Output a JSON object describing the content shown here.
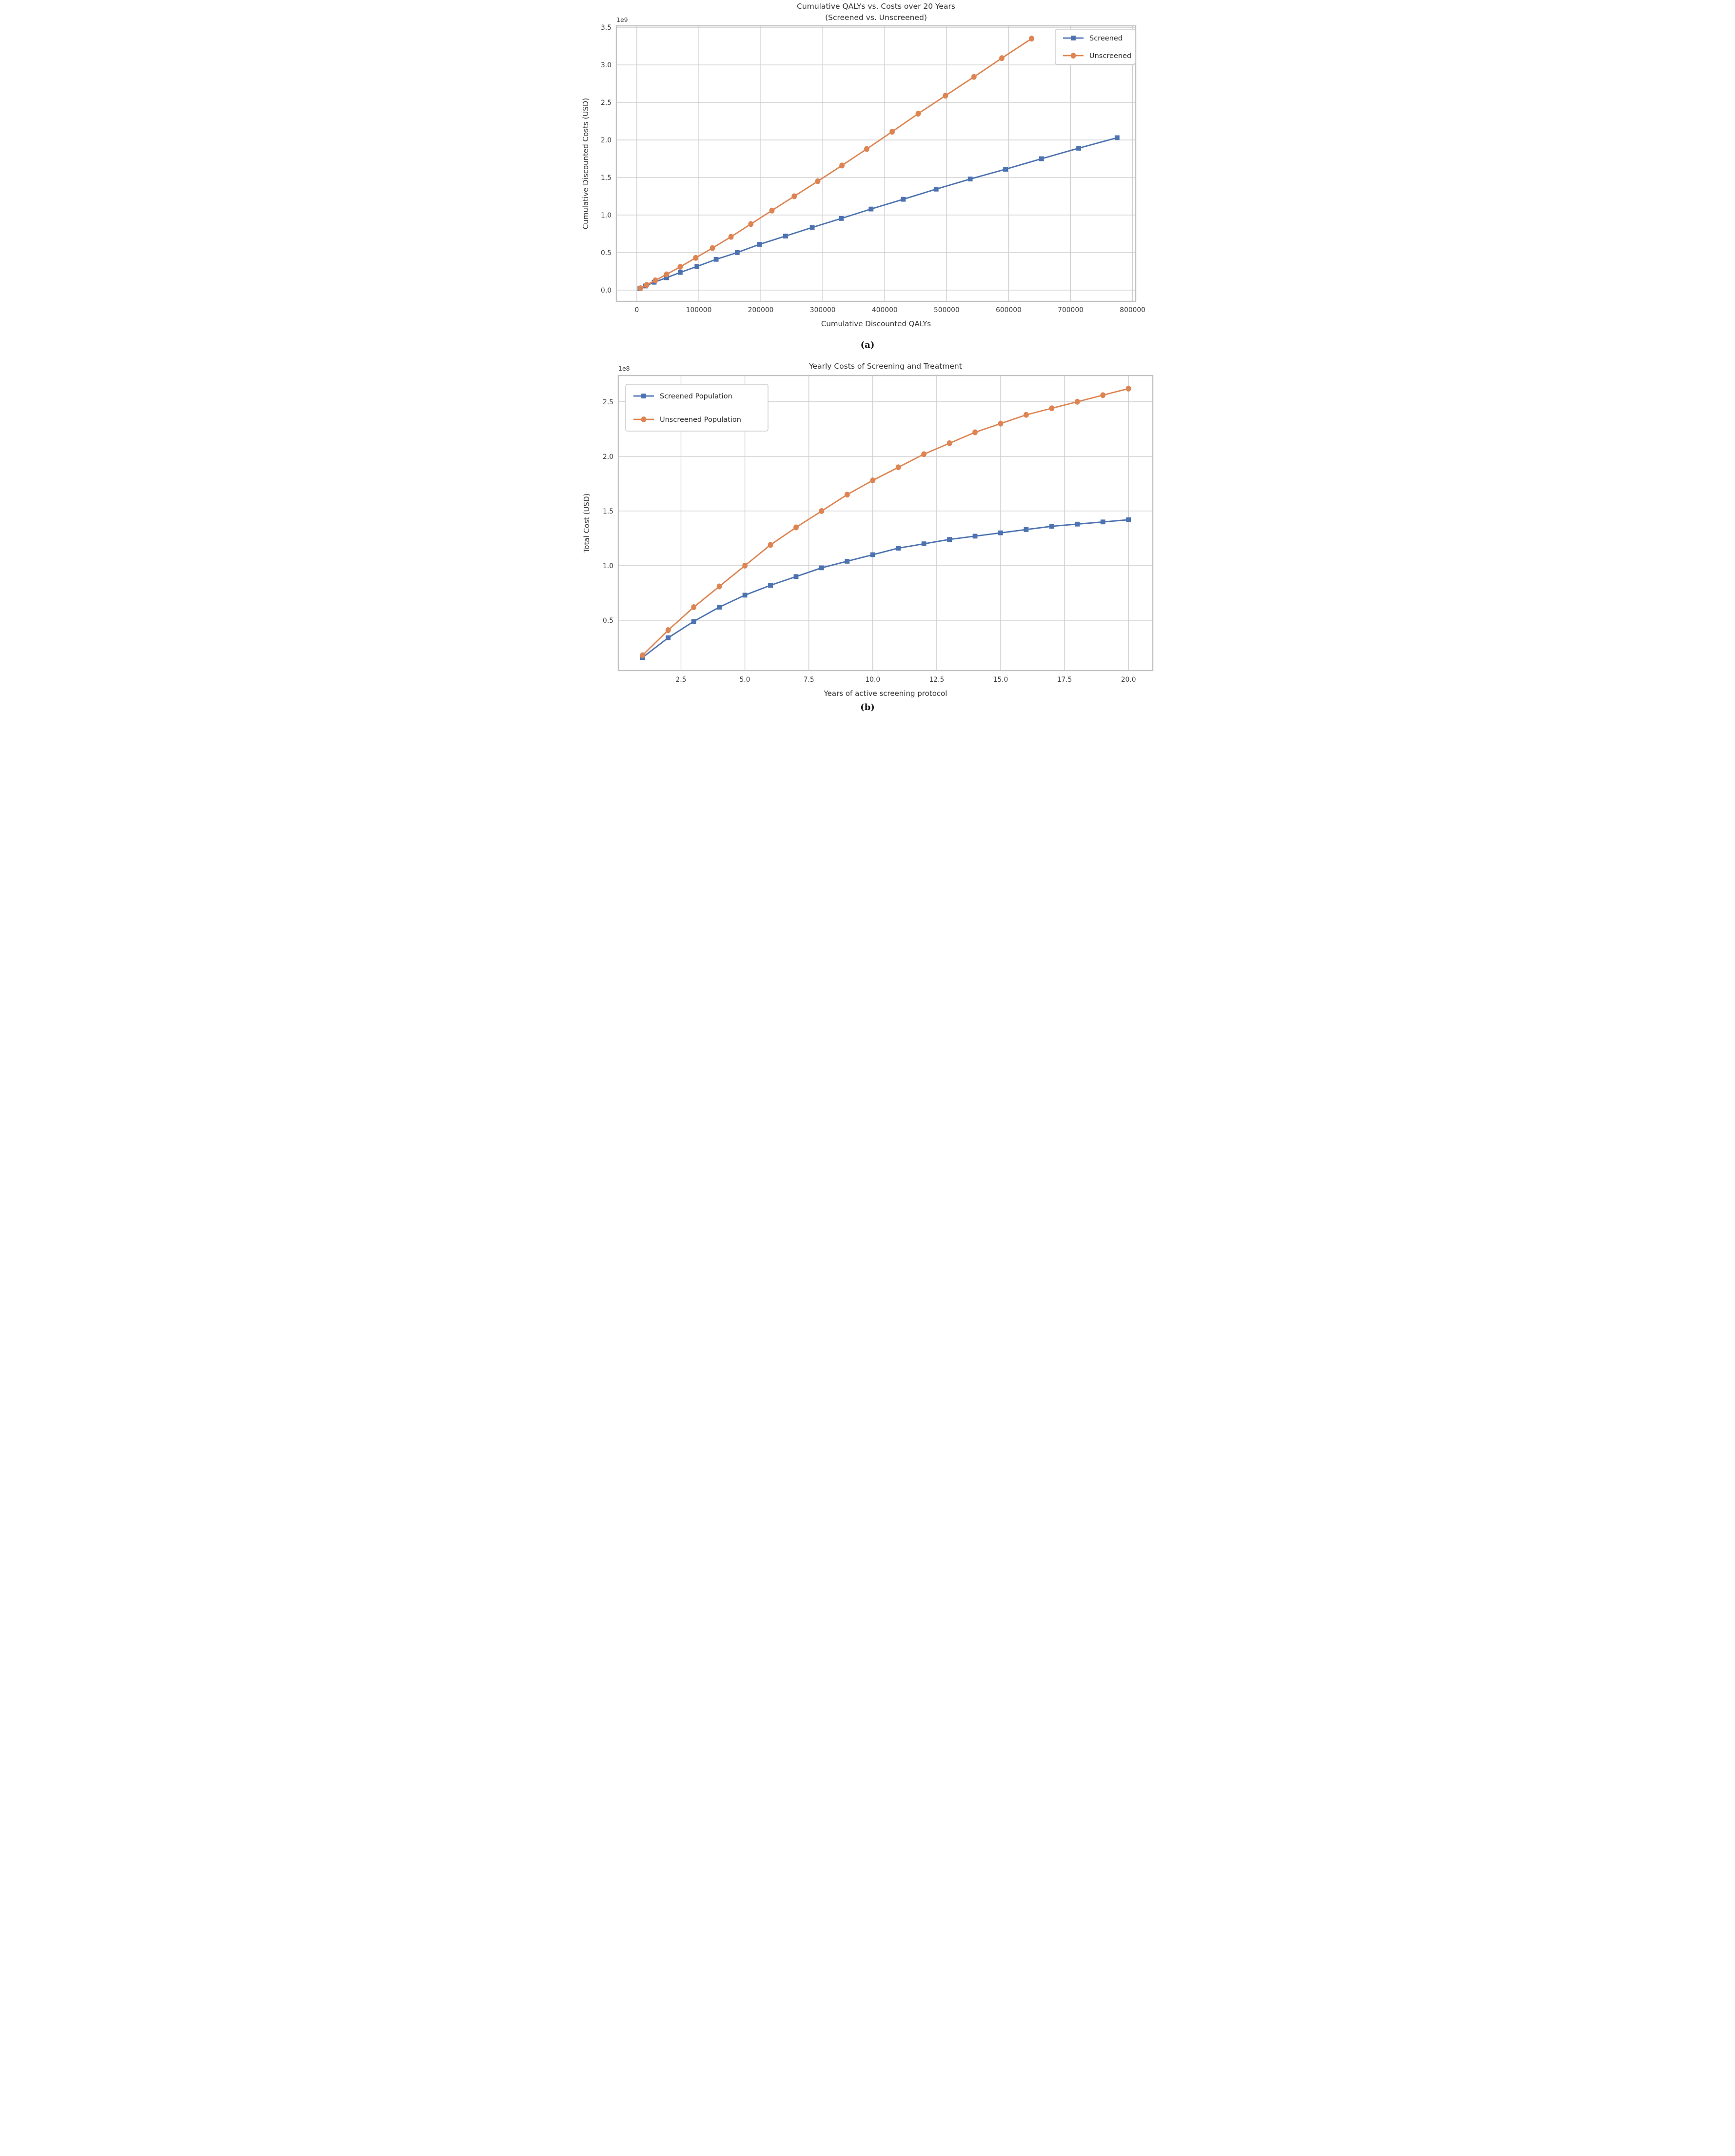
{
  "page": {
    "background": "#ffffff"
  },
  "colors": {
    "screened": "#4C72B0",
    "unscreened": "#DD8452",
    "grid": "#cdcdcd",
    "spine": "#c2c2c2",
    "tick_text": "#3d3d3d",
    "title_text": "#333333",
    "legend_border": "#cccccc"
  },
  "captions": {
    "a": "(a)",
    "b": "(b)"
  },
  "chart_data": [
    {
      "id": "a",
      "type": "line",
      "caption": "(a)",
      "title_lines": [
        "Cumulative QALYs vs. Costs over 20 Years",
        "(Screened vs. Unscreened)"
      ],
      "xlabel": "Cumulative Discounted QALYs",
      "ylabel": "Cumulative Discounted Costs (USD)",
      "offset_text": "1e9",
      "grid": true,
      "xlim": [
        -33000,
        805000
      ],
      "ylim": [
        -0.15,
        3.52
      ],
      "x_ticks": [
        0,
        100000,
        200000,
        300000,
        400000,
        500000,
        600000,
        700000,
        800000
      ],
      "x_tick_labels": [
        "0",
        "100000",
        "200000",
        "300000",
        "400000",
        "500000",
        "600000",
        "700000",
        "800000"
      ],
      "y_ticks": [
        0.0,
        0.5,
        1.0,
        1.5,
        2.0,
        2.5,
        3.0,
        3.5
      ],
      "y_tick_labels": [
        "0.0",
        "0.5",
        "1.0",
        "1.5",
        "2.0",
        "2.5",
        "3.0",
        "3.5"
      ],
      "legend": {
        "position": "upper-right",
        "entries": [
          {
            "label": "Screened",
            "color": "#4C72B0",
            "marker": "square"
          },
          {
            "label": "Unscreened",
            "color": "#DD8452",
            "marker": "circle"
          }
        ]
      },
      "series": [
        {
          "name": "Screened",
          "color": "#4C72B0",
          "marker": "square",
          "x": [
            5000,
            14000,
            28000,
            48000,
            70000,
            97000,
            128000,
            162000,
            198000,
            240000,
            283000,
            330000,
            378000,
            430000,
            483000,
            538000,
            595000,
            653000,
            713000,
            775000
          ],
          "y": [
            0.02,
            0.055,
            0.105,
            0.165,
            0.235,
            0.315,
            0.41,
            0.5,
            0.61,
            0.72,
            0.835,
            0.955,
            1.08,
            1.21,
            1.345,
            1.48,
            1.61,
            1.75,
            1.89,
            2.03
          ]
        },
        {
          "name": "Unscreened",
          "color": "#DD8452",
          "marker": "circle",
          "x": [
            6000,
            16000,
            30000,
            48000,
            70000,
            95000,
            122000,
            152000,
            184000,
            218000,
            254000,
            292000,
            331000,
            371000,
            412000,
            454000,
            498000,
            544000,
            589000,
            637000
          ],
          "y": [
            0.025,
            0.07,
            0.13,
            0.21,
            0.31,
            0.43,
            0.56,
            0.71,
            0.88,
            1.06,
            1.25,
            1.45,
            1.66,
            1.88,
            2.11,
            2.35,
            2.59,
            2.84,
            3.09,
            3.35
          ]
        }
      ]
    },
    {
      "id": "b",
      "type": "line",
      "caption": "(b)",
      "title_lines": [
        "Yearly Costs of Screening and Treatment"
      ],
      "xlabel": "Years of active screening protocol",
      "ylabel": "Total Cost (USD)",
      "offset_text": "1e8",
      "grid": true,
      "xlim": [
        0.05,
        20.95
      ],
      "ylim": [
        0.04,
        2.74
      ],
      "x_ticks": [
        2.5,
        5.0,
        7.5,
        10.0,
        12.5,
        15.0,
        17.5,
        20.0
      ],
      "x_tick_labels": [
        "2.5",
        "5.0",
        "7.5",
        "10.0",
        "12.5",
        "15.0",
        "17.5",
        "20.0"
      ],
      "y_ticks": [
        0.5,
        1.0,
        1.5,
        2.0,
        2.5
      ],
      "y_tick_labels": [
        "0.5",
        "1.0",
        "1.5",
        "2.0",
        "2.5"
      ],
      "legend": {
        "position": "upper-left",
        "entries": [
          {
            "label": "Screened Population",
            "color": "#4C72B0",
            "marker": "square"
          },
          {
            "label": "Unscreened Population",
            "color": "#DD8452",
            "marker": "circle"
          }
        ]
      },
      "series": [
        {
          "name": "Screened Population",
          "color": "#4C72B0",
          "marker": "square",
          "x": [
            1,
            2,
            3,
            4,
            5,
            6,
            7,
            8,
            9,
            10,
            11,
            12,
            13,
            14,
            15,
            16,
            17,
            18,
            19,
            20
          ],
          "y": [
            0.16,
            0.34,
            0.49,
            0.62,
            0.73,
            0.82,
            0.9,
            0.98,
            1.04,
            1.1,
            1.16,
            1.2,
            1.24,
            1.27,
            1.3,
            1.33,
            1.36,
            1.38,
            1.4,
            1.42
          ]
        },
        {
          "name": "Unscreened Population",
          "color": "#DD8452",
          "marker": "circle",
          "x": [
            1,
            2,
            3,
            4,
            5,
            6,
            7,
            8,
            9,
            10,
            11,
            12,
            13,
            14,
            15,
            16,
            17,
            18,
            19,
            20
          ],
          "y": [
            0.18,
            0.41,
            0.62,
            0.81,
            1.0,
            1.19,
            1.35,
            1.5,
            1.65,
            1.78,
            1.9,
            2.02,
            2.12,
            2.22,
            2.3,
            2.38,
            2.44,
            2.5,
            2.56,
            2.62
          ]
        }
      ]
    }
  ]
}
